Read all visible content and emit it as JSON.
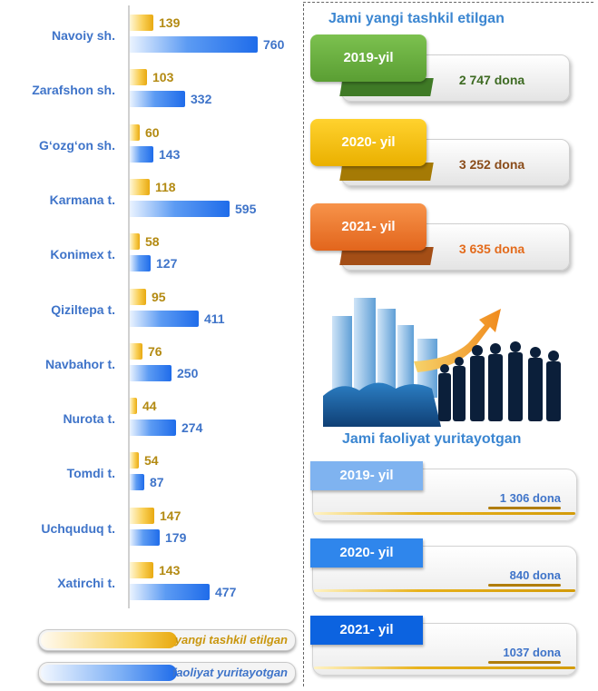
{
  "chart_data": {
    "type": "bar",
    "orientation": "horizontal",
    "categories": [
      "Navoiy sh.",
      "Zarafshon sh.",
      "G‘ozg‘on sh.",
      "Karmana t.",
      "Konimex t.",
      "Qiziltepa t.",
      "Navbahor t.",
      "Nurota t.",
      "Tomdi t.",
      "Uchquduq t.",
      "Xatirchi t."
    ],
    "series": [
      {
        "name": "yangi tashkil etilgan",
        "values": [
          139,
          103,
          60,
          118,
          58,
          95,
          76,
          44,
          54,
          147,
          143
        ],
        "color": "#f2b316"
      },
      {
        "name": "faoliyat yuritayotgan",
        "values": [
          760,
          332,
          143,
          595,
          127,
          411,
          250,
          274,
          87,
          179,
          477
        ],
        "color": "#2f79ee"
      }
    ],
    "legend": "bottom-left",
    "grid": false
  },
  "right_panel": {
    "new_title": "Jami yangi tashkil etilgan",
    "new_items": [
      {
        "year": "2019-yil",
        "amount": "2 747 dona",
        "color": "#62a83c",
        "text_color": "#3d6a22"
      },
      {
        "year": "2020- yil",
        "amount": "3 252 dona",
        "color": "#f0b800",
        "text_color": "#8a4c1a"
      },
      {
        "year": "2021- yil",
        "amount": "3 635 dona",
        "color": "#ec7a2e",
        "text_color": "#e36b1c"
      }
    ],
    "active_title": "Jami faoliyat yuritayotgan",
    "active_items": [
      {
        "year": "2019- yil",
        "amount": "1 306 dona",
        "color": "#7fb3f0"
      },
      {
        "year": "2020- yil",
        "amount": "840 dona",
        "color": "#2f86ec"
      },
      {
        "year": "2021- yil",
        "amount": "1037 dona",
        "color": "#0c63e0"
      }
    ]
  },
  "colors": {
    "category_text": "#3f74c9",
    "yellow_value_text": "#b38a12",
    "title_text": "#3b86d1"
  }
}
